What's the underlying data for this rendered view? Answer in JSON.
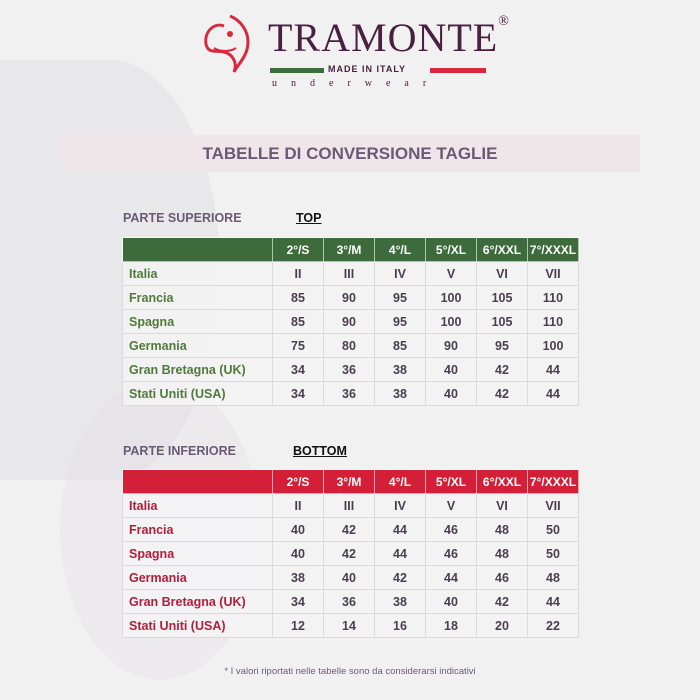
{
  "brand": {
    "name": "TRAMONTE",
    "registered": "®",
    "tagline": "MADE IN ITALY",
    "subline": "underwear",
    "colors": {
      "green": "#3d6e3a",
      "red": "#d8283e",
      "text": "#4a2040"
    }
  },
  "title": "TABELLE DI CONVERSIONE TAGLIE",
  "sizes": [
    "2°/S",
    "3°/M",
    "4°/L",
    "5°/XL",
    "6°/XXL",
    "7°/XXXL"
  ],
  "top": {
    "section": "PARTE SUPERIORE",
    "label": "TOP",
    "header_color": "#3d6b3b",
    "label_color": "#4f7a3c",
    "rows": [
      {
        "country": "Italia",
        "values": [
          "II",
          "III",
          "IV",
          "V",
          "VI",
          "VII"
        ]
      },
      {
        "country": "Francia",
        "values": [
          "85",
          "90",
          "95",
          "100",
          "105",
          "110"
        ]
      },
      {
        "country": "Spagna",
        "values": [
          "85",
          "90",
          "95",
          "100",
          "105",
          "110"
        ]
      },
      {
        "country": "Germania",
        "values": [
          "75",
          "80",
          "85",
          "90",
          "95",
          "100"
        ]
      },
      {
        "country": "Gran Bretagna (UK)",
        "values": [
          "34",
          "36",
          "38",
          "40",
          "42",
          "44"
        ]
      },
      {
        "country": "Stati Uniti (USA)",
        "values": [
          "34",
          "36",
          "38",
          "40",
          "42",
          "44"
        ]
      }
    ]
  },
  "bottom": {
    "section": "PARTE INFERIORE",
    "label": "BOTTOM",
    "header_color": "#d41f38",
    "label_color": "#b01e3c",
    "rows": [
      {
        "country": "Italia",
        "values": [
          "II",
          "III",
          "IV",
          "V",
          "VI",
          "VII"
        ]
      },
      {
        "country": "Francia",
        "values": [
          "40",
          "42",
          "44",
          "46",
          "48",
          "50"
        ]
      },
      {
        "country": "Spagna",
        "values": [
          "40",
          "42",
          "44",
          "46",
          "48",
          "50"
        ]
      },
      {
        "country": "Germania",
        "values": [
          "38",
          "40",
          "42",
          "44",
          "46",
          "48"
        ]
      },
      {
        "country": "Gran Bretagna (UK)",
        "values": [
          "34",
          "36",
          "38",
          "40",
          "42",
          "44"
        ]
      },
      {
        "country": "Stati Uniti (USA)",
        "values": [
          "12",
          "14",
          "16",
          "18",
          "20",
          "22"
        ]
      }
    ]
  },
  "footnote": "* I valori riportati nelle tabelle sono da considerarsi indicativi"
}
